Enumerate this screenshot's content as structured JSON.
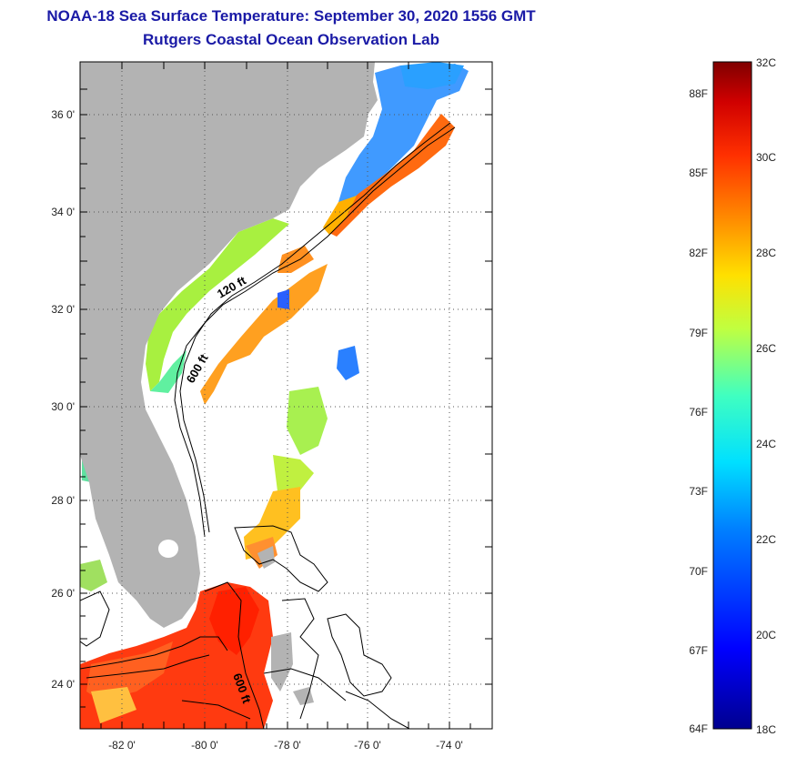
{
  "title": {
    "line1": "NOAA-18 Sea Surface Temperature:  September 30, 2020 1556 GMT",
    "line2": "Rutgers Coastal Ocean Observation Lab"
  },
  "map": {
    "lat_labels": [
      "36 0'",
      "34 0'",
      "32 0'",
      "30 0'",
      "28 0'",
      "26 0'",
      "24 0'"
    ],
    "lon_labels": [
      "-82 0'",
      "-80 0'",
      "-78 0'",
      "-76 0'",
      "-74 0'"
    ],
    "contour_labels": [
      "120 ft",
      "600 ft",
      "600 ft"
    ],
    "colors": {
      "land": "#b3b3b3",
      "frame": "#000000"
    }
  },
  "colorbar": {
    "fahrenheit_labels": [
      "88F",
      "85F",
      "82F",
      "79F",
      "76F",
      "73F",
      "70F",
      "67F",
      "64F"
    ],
    "celsius_labels": [
      "32C",
      "30C",
      "28C",
      "26C",
      "24C",
      "22C",
      "20C",
      "18C"
    ],
    "range_celsius": [
      18,
      32
    ]
  }
}
